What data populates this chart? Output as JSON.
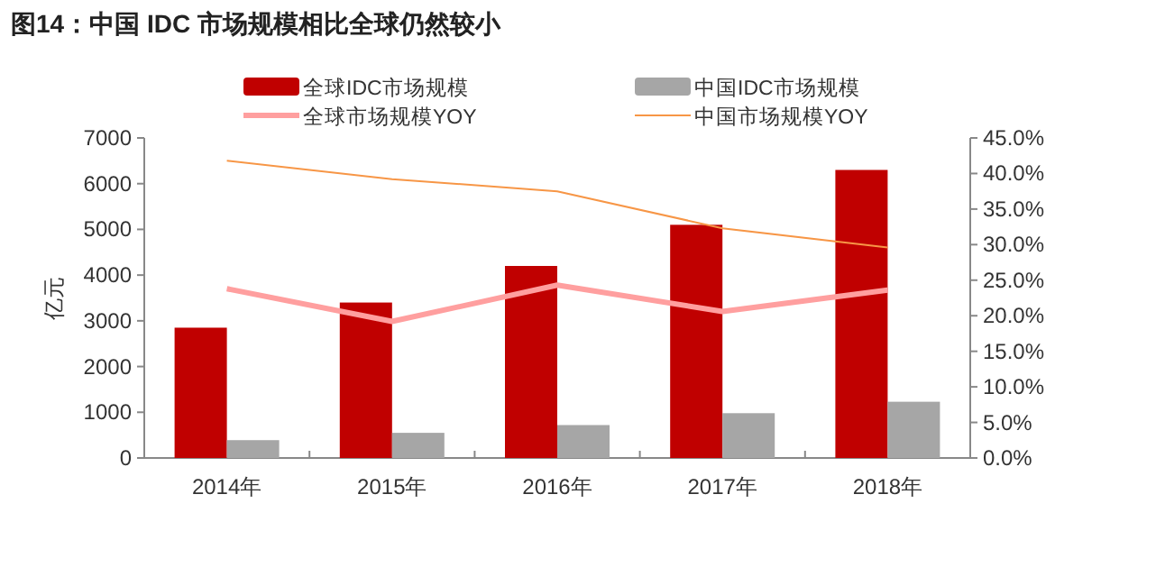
{
  "chart_data": {
    "type": "bar",
    "title": "图14：中国 IDC 市场规模相比全球仍然较小",
    "ylabel": "亿元",
    "categories": [
      "2014年",
      "2015年",
      "2016年",
      "2017年",
      "2018年"
    ],
    "series": [
      {
        "name": "全球IDC市场规模",
        "color": "#c00000",
        "values": [
          2850,
          3400,
          4200,
          5100,
          6300
        ]
      },
      {
        "name": "中国IDC市场规模",
        "color": "#a6a6a6",
        "values": [
          390,
          550,
          720,
          980,
          1230
        ]
      },
      {
        "name": "全球市场规模YOY",
        "type": "line",
        "axis": "y2",
        "color": "#ff9f9f",
        "values": [
          23.8,
          19.2,
          24.3,
          20.6,
          23.6
        ]
      },
      {
        "name": "中国市场规模YOY",
        "type": "line",
        "axis": "y2",
        "color": "#f79646",
        "values": [
          41.8,
          39.2,
          37.5,
          32.3,
          29.6
        ]
      }
    ],
    "ylim": [
      0,
      7000
    ],
    "yticks": [
      0,
      1000,
      2000,
      3000,
      4000,
      5000,
      6000,
      7000
    ],
    "y2lim": [
      0,
      45
    ],
    "y2ticks": [
      {
        "value": 0,
        "label": "0.0%"
      },
      {
        "value": 5,
        "label": "5.0%"
      },
      {
        "value": 10,
        "label": "10.0%"
      },
      {
        "value": 15,
        "label": "15.0%"
      },
      {
        "value": 20,
        "label": "20.0%"
      },
      {
        "value": 25,
        "label": "25.0%"
      },
      {
        "value": 30,
        "label": "30.0%"
      },
      {
        "value": 35,
        "label": "35.0%"
      },
      {
        "value": 40,
        "label": "40.0%"
      },
      {
        "value": 45,
        "label": "45.0%"
      }
    ],
    "legend": "top",
    "grid": false
  }
}
